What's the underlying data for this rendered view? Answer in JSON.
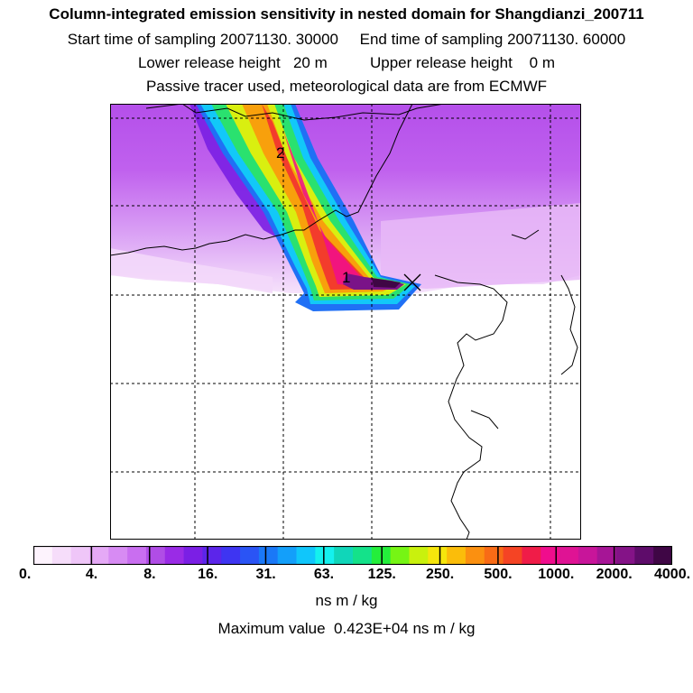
{
  "header": {
    "title": "Column-integrated emission sensitivity in nested domain for Shangdianzi_200711",
    "line2": "Start time of sampling 20071130. 30000     End time of sampling 20071130. 60000",
    "line3": "Lower release height   20 m          Upper release height    0 m",
    "line4": "Passive tracer used, meteorological data are from ECMWF"
  },
  "map": {
    "labels": [
      "1",
      "2"
    ],
    "release_marker": "x-marker-icon"
  },
  "colorbar": {
    "colors": [
      "#fdf3fd",
      "#f6ddfa",
      "#efc6f8",
      "#e5a9f6",
      "#d78bf3",
      "#c96ef0",
      "#b04de6",
      "#9a2be6",
      "#7b1fe5",
      "#5c25ea",
      "#3e35f2",
      "#2a54f5",
      "#1a78f7",
      "#139ffa",
      "#10c6fb",
      "#14f1ee",
      "#10d6b9",
      "#14e28a",
      "#24ee3b",
      "#76f514",
      "#c9f10d",
      "#f6e60c",
      "#fbbd0a",
      "#fb9010",
      "#f86b16",
      "#f54424",
      "#f01c48",
      "#f00d8d",
      "#df1394",
      "#c8159a",
      "#a61596",
      "#841387",
      "#5e0c6a",
      "#3f0645"
    ],
    "tick_labels": [
      "0.",
      "4.",
      "8.",
      "16.",
      "31.",
      "63.",
      "125.",
      "250.",
      "500.",
      "1000.",
      "2000.",
      "4000."
    ],
    "units": "ns m / kg"
  },
  "footer": {
    "max_label": "Maximum value  0.423E+04 ns m / kg"
  }
}
